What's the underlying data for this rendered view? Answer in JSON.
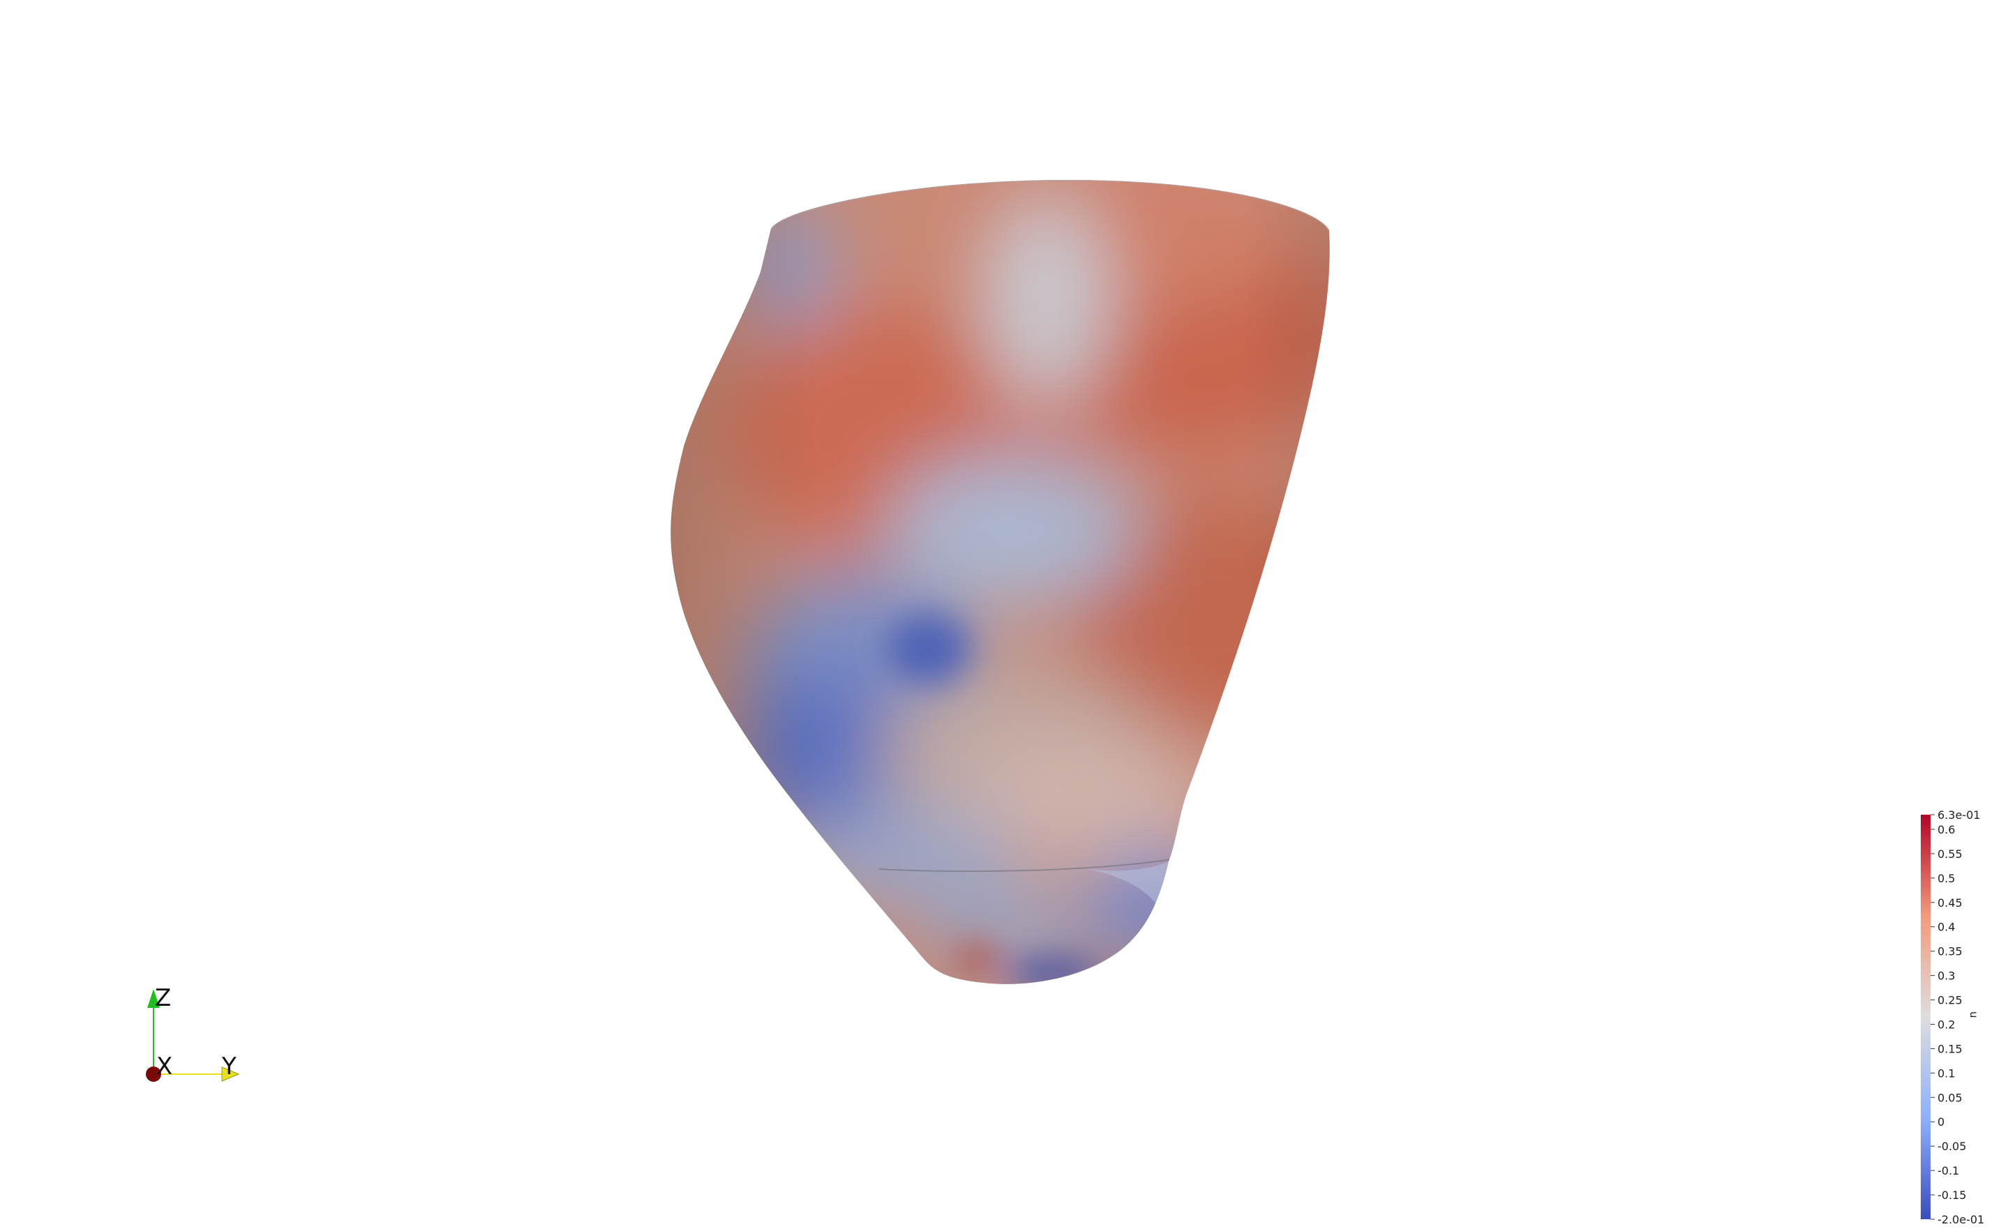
{
  "scene": {
    "object": "3d-mesh-surface",
    "colormap": "cool-to-warm",
    "colors": {
      "warm": "#c9654d",
      "neutral": "#d8cfcb",
      "cool": "#3e55b8",
      "background": "#ffffff"
    }
  },
  "orientation_axes": {
    "z_label": "Z",
    "x_label": "X",
    "y_label": "Y",
    "z_color": "#1fbf1f",
    "x_color": "#7a0a0a",
    "y_color": "#e8e020"
  },
  "colorbar": {
    "title": "u",
    "min": -0.2,
    "max": 0.63,
    "max_label": "6.3e-01",
    "min_label": "-2.0e-01",
    "ticks": [
      {
        "value": 0.63,
        "label": "6.3e-01"
      },
      {
        "value": 0.6,
        "label": "0.6"
      },
      {
        "value": 0.55,
        "label": "0.55"
      },
      {
        "value": 0.5,
        "label": "0.5"
      },
      {
        "value": 0.45,
        "label": "0.45"
      },
      {
        "value": 0.4,
        "label": "0.4"
      },
      {
        "value": 0.35,
        "label": "0.35"
      },
      {
        "value": 0.3,
        "label": "0.3"
      },
      {
        "value": 0.25,
        "label": "0.25"
      },
      {
        "value": 0.2,
        "label": "0.2"
      },
      {
        "value": 0.15,
        "label": "0.15"
      },
      {
        "value": 0.1,
        "label": "0.1"
      },
      {
        "value": 0.05,
        "label": "0.05"
      },
      {
        "value": 0,
        "label": "0"
      },
      {
        "value": -0.05,
        "label": "-0.05"
      },
      {
        "value": -0.1,
        "label": "-0.1"
      },
      {
        "value": -0.15,
        "label": "-0.15"
      },
      {
        "value": -0.2,
        "label": "-2.0e-01"
      }
    ]
  }
}
